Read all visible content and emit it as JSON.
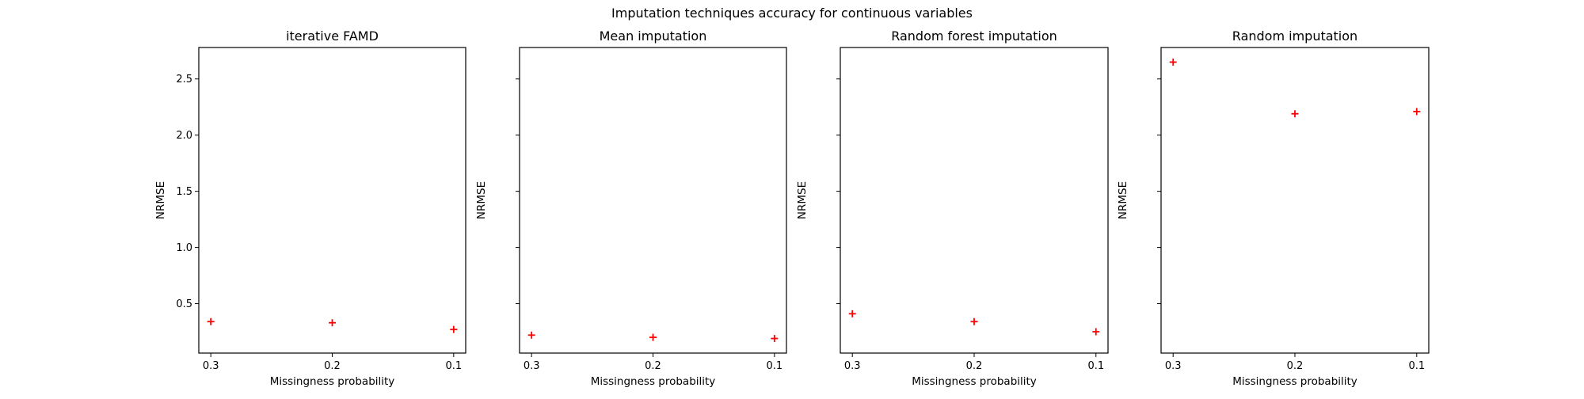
{
  "figure": {
    "title": "Imputation techniques accuracy for continuous variables"
  },
  "chart_data": [
    {
      "type": "scatter",
      "title": "iterative FAMD",
      "xlabel": "Missingness probability",
      "ylabel": "NRMSE",
      "categories": [
        "0.3",
        "0.2",
        "0.1"
      ],
      "values": [
        0.34,
        0.33,
        0.27
      ],
      "yticks": [
        0.5,
        1.0,
        1.5,
        2.0,
        2.5
      ],
      "ytick_labels": [
        "0.5",
        "1.0",
        "1.5",
        "2.0",
        "2.5"
      ],
      "ylim": [
        0.06,
        2.78
      ],
      "marker": "+",
      "color": "#ff0000",
      "show_ytick_labels": true
    },
    {
      "type": "scatter",
      "title": "Mean imputation",
      "xlabel": "Missingness probability",
      "ylabel": "NRMSE",
      "categories": [
        "0.3",
        "0.2",
        "0.1"
      ],
      "values": [
        0.22,
        0.2,
        0.19
      ],
      "yticks": [
        0.5,
        1.0,
        1.5,
        2.0,
        2.5
      ],
      "ylim": [
        0.06,
        2.78
      ],
      "marker": "+",
      "color": "#ff0000",
      "show_ytick_labels": false
    },
    {
      "type": "scatter",
      "title": "Random forest imputation",
      "xlabel": "Missingness probability",
      "ylabel": "NRMSE",
      "categories": [
        "0.3",
        "0.2",
        "0.1"
      ],
      "values": [
        0.41,
        0.34,
        0.25
      ],
      "yticks": [
        0.5,
        1.0,
        1.5,
        2.0,
        2.5
      ],
      "ylim": [
        0.06,
        2.78
      ],
      "marker": "+",
      "color": "#ff0000",
      "show_ytick_labels": false
    },
    {
      "type": "scatter",
      "title": "Random imputation",
      "xlabel": "Missingness probability",
      "ylabel": "NRMSE",
      "categories": [
        "0.3",
        "0.2",
        "0.1"
      ],
      "values": [
        2.65,
        2.19,
        2.21
      ],
      "yticks": [
        0.5,
        1.0,
        1.5,
        2.0,
        2.5
      ],
      "ylim": [
        0.06,
        2.78
      ],
      "marker": "+",
      "color": "#ff0000",
      "show_ytick_labels": false
    }
  ]
}
